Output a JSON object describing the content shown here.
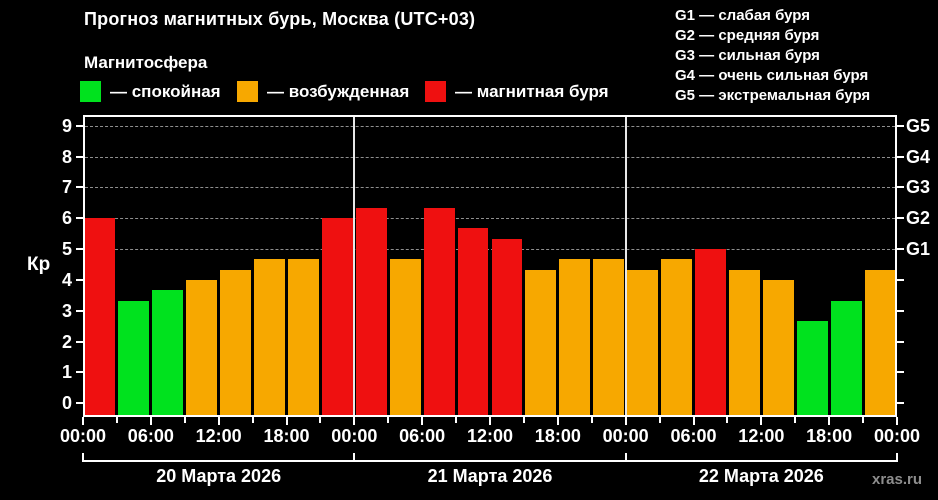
{
  "title": "Прогноз магнитных бурь, Москва (UTC+03)",
  "subtitle": "Магнитосфера",
  "legend": {
    "items": [
      {
        "key": "quiet",
        "label": "— спокойная",
        "color": "#00e21e"
      },
      {
        "key": "unsettled",
        "label": "— возбужденная",
        "color": "#f7a800"
      },
      {
        "key": "storm",
        "label": "— магнитная буря",
        "color": "#ef1010"
      }
    ]
  },
  "g_scale_legend": [
    "G1 — слабая буря",
    "G2 — средняя буря",
    "G3 — сильная буря",
    "G4 — очень сильная буря",
    "G5 — экстремальная буря"
  ],
  "watermark": "xras.ru",
  "chart_data": {
    "type": "bar",
    "title": "Прогноз магнитных бурь, Москва (UTC+03)",
    "ylabel": "Кр",
    "ylim": [
      0,
      9
    ],
    "yticks": [
      0,
      1,
      2,
      3,
      4,
      5,
      6,
      7,
      8,
      9
    ],
    "gridlines_at_kp": [
      5,
      6,
      7,
      8,
      9
    ],
    "grid": "dashed-horizontal",
    "legend_position": "top",
    "interval_hours": 3,
    "right_axis_labels": [
      {
        "kp": 5,
        "label": "G1"
      },
      {
        "kp": 6,
        "label": "G2"
      },
      {
        "kp": 7,
        "label": "G3"
      },
      {
        "kp": 8,
        "label": "G4"
      },
      {
        "kp": 9,
        "label": "G5"
      }
    ],
    "x_tick_labels": [
      "00:00",
      "06:00",
      "12:00",
      "18:00",
      "00:00",
      "06:00",
      "12:00",
      "18:00",
      "00:00",
      "06:00",
      "12:00",
      "18:00",
      "00:00"
    ],
    "status_colors": {
      "quiet": "#00e21e",
      "unsettled": "#f7a800",
      "storm": "#ef1010"
    },
    "days": [
      {
        "date": "20 Марта 2026",
        "bars": [
          {
            "time": "00:00",
            "kp": 6.0,
            "status": "storm"
          },
          {
            "time": "03:00",
            "kp": 3.33,
            "status": "quiet"
          },
          {
            "time": "06:00",
            "kp": 3.67,
            "status": "quiet"
          },
          {
            "time": "09:00",
            "kp": 4.0,
            "status": "unsettled"
          },
          {
            "time": "12:00",
            "kp": 4.33,
            "status": "unsettled"
          },
          {
            "time": "15:00",
            "kp": 4.67,
            "status": "unsettled"
          },
          {
            "time": "18:00",
            "kp": 4.67,
            "status": "unsettled"
          },
          {
            "time": "21:00",
            "kp": 6.0,
            "status": "storm"
          }
        ]
      },
      {
        "date": "21 Марта 2026",
        "bars": [
          {
            "time": "00:00",
            "kp": 6.33,
            "status": "storm"
          },
          {
            "time": "03:00",
            "kp": 4.67,
            "status": "unsettled"
          },
          {
            "time": "06:00",
            "kp": 6.33,
            "status": "storm"
          },
          {
            "time": "09:00",
            "kp": 5.67,
            "status": "storm"
          },
          {
            "time": "12:00",
            "kp": 5.33,
            "status": "storm"
          },
          {
            "time": "15:00",
            "kp": 4.33,
            "status": "unsettled"
          },
          {
            "time": "18:00",
            "kp": 4.67,
            "status": "unsettled"
          },
          {
            "time": "21:00",
            "kp": 4.67,
            "status": "unsettled"
          }
        ]
      },
      {
        "date": "22 Марта 2026",
        "bars": [
          {
            "time": "00:00",
            "kp": 4.33,
            "status": "unsettled"
          },
          {
            "time": "03:00",
            "kp": 4.67,
            "status": "unsettled"
          },
          {
            "time": "06:00",
            "kp": 5.0,
            "status": "storm"
          },
          {
            "time": "09:00",
            "kp": 4.33,
            "status": "unsettled"
          },
          {
            "time": "12:00",
            "kp": 4.0,
            "status": "unsettled"
          },
          {
            "time": "15:00",
            "kp": 2.67,
            "status": "quiet"
          },
          {
            "time": "18:00",
            "kp": 3.33,
            "status": "quiet"
          },
          {
            "time": "21:00",
            "kp": 4.33,
            "status": "unsettled"
          }
        ]
      }
    ]
  }
}
